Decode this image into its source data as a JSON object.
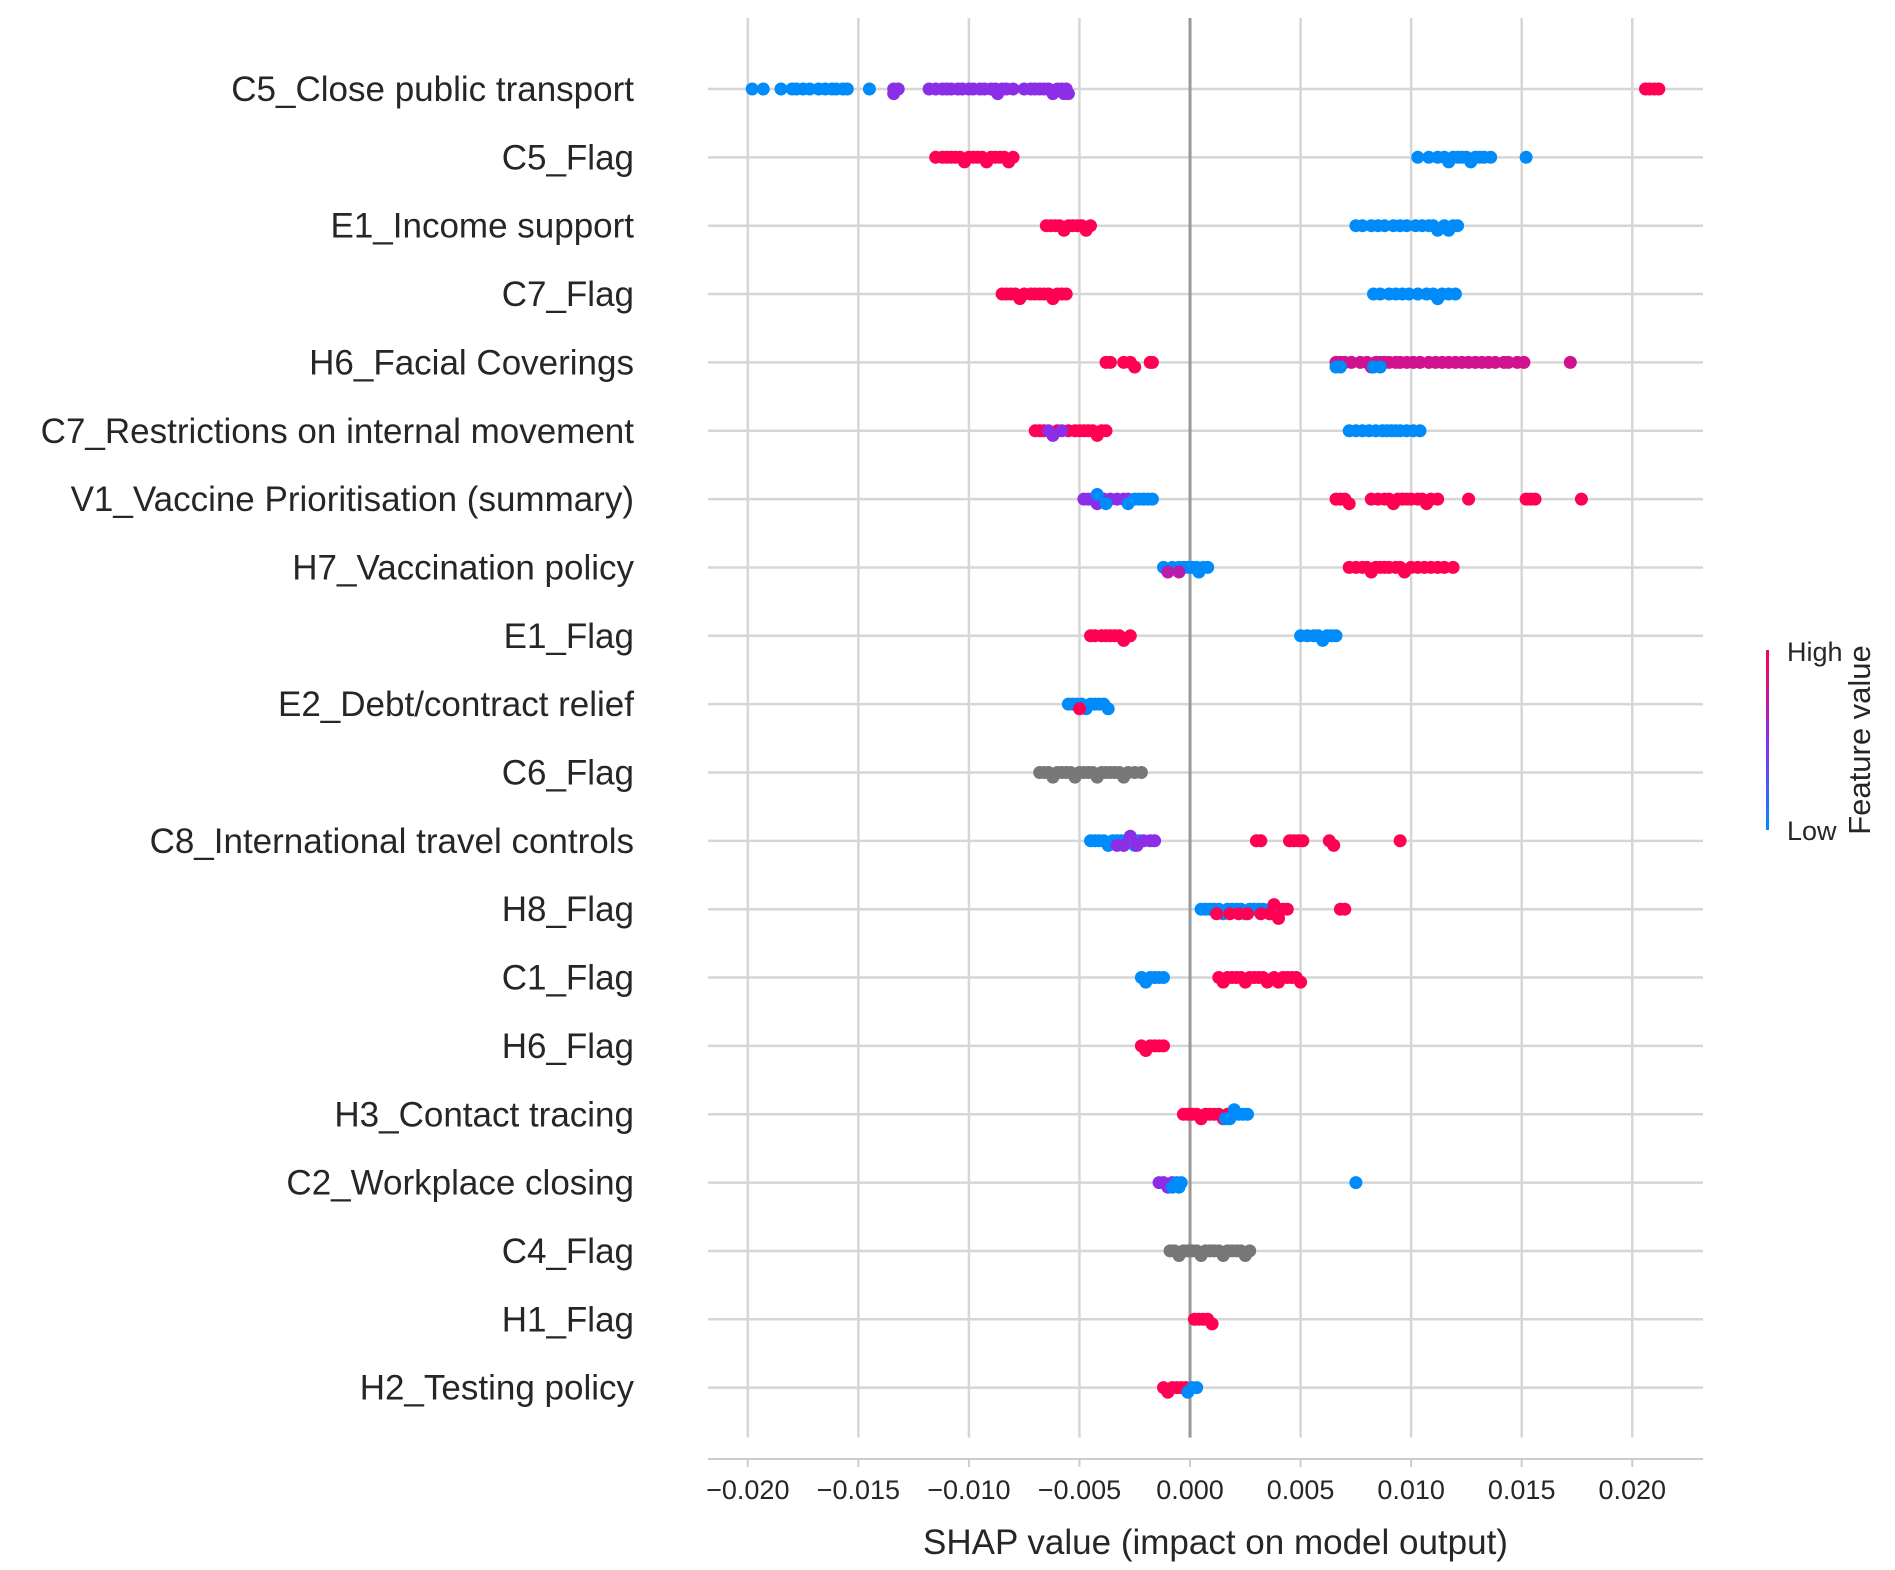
{
  "chart_data": {
    "type": "scatter",
    "subtype": "shap-beeswarm-summary",
    "title": "",
    "xlabel": "SHAP value (impact on model output)",
    "ylabel": "",
    "xlim": [
      -0.0218,
      0.0232
    ],
    "xticks": [
      -0.02,
      -0.015,
      -0.01,
      -0.005,
      0.0,
      0.005,
      0.01,
      0.015,
      0.02
    ],
    "xtick_labels": [
      "−0.020",
      "−0.015",
      "−0.010",
      "−0.005",
      "0.000",
      "0.005",
      "0.010",
      "0.015",
      "0.020"
    ],
    "grid": "vertical and horizontal",
    "colorbar": {
      "title": "Feature value",
      "high_label": "High",
      "low_label": "Low",
      "low_color": "#008bfb",
      "high_color": "#ff0052",
      "placement": "right"
    },
    "missing_color": "#777777",
    "features": [
      {
        "name": "C5_Close public transport",
        "groups": [
          {
            "c": 0.0,
            "xs": [
              -0.0198,
              -0.0193,
              -0.0185,
              -0.018,
              -0.0178,
              -0.0175,
              -0.0172,
              -0.0168,
              -0.0165,
              -0.0162,
              -0.016,
              -0.0157,
              -0.0155,
              -0.0145
            ]
          },
          {
            "c": 0.5,
            "xs": [
              -0.0134,
              -0.0134,
              -0.0132,
              -0.0118,
              -0.0115,
              -0.0112,
              -0.011,
              -0.0108,
              -0.0105,
              -0.0103,
              -0.01,
              -0.0098,
              -0.0095,
              -0.0093,
              -0.009,
              -0.0088,
              -0.0087,
              -0.0085,
              -0.0083,
              -0.008,
              -0.0075,
              -0.0072,
              -0.007,
              -0.0068,
              -0.0066,
              -0.0064,
              -0.0062,
              -0.006,
              -0.0058,
              -0.0057,
              -0.0056,
              -0.0055
            ]
          },
          {
            "c": 1.0,
            "xs": [
              0.0206,
              0.0208,
              0.021,
              0.0212
            ]
          }
        ]
      },
      {
        "name": "C5_Flag",
        "groups": [
          {
            "c": 1.0,
            "xs": [
              -0.0115,
              -0.0112,
              -0.011,
              -0.0108,
              -0.0106,
              -0.0104,
              -0.0102,
              -0.01,
              -0.0098,
              -0.0096,
              -0.0094,
              -0.0092,
              -0.009,
              -0.0088,
              -0.0086,
              -0.0084,
              -0.0082,
              -0.008
            ]
          },
          {
            "c": 0.0,
            "xs": [
              0.0103,
              0.0108,
              0.0112,
              0.0115,
              0.0117,
              0.0119,
              0.0121,
              0.0123,
              0.0125,
              0.0127,
              0.0129,
              0.0131,
              0.0133,
              0.0136,
              0.0152
            ]
          }
        ]
      },
      {
        "name": "E1_Income support",
        "groups": [
          {
            "c": 1.0,
            "xs": [
              -0.0065,
              -0.0063,
              -0.0061,
              -0.0059,
              -0.0057,
              -0.0055,
              -0.0053,
              -0.0051,
              -0.0049,
              -0.0047,
              -0.0045
            ]
          },
          {
            "c": 0.0,
            "xs": [
              0.0075,
              0.0078,
              0.0082,
              0.0085,
              0.0088,
              0.0092,
              0.0095,
              0.0098,
              0.0102,
              0.0105,
              0.0108,
              0.011,
              0.0112,
              0.0115,
              0.0117,
              0.0119,
              0.0121
            ]
          }
        ]
      },
      {
        "name": "C7_Flag",
        "groups": [
          {
            "c": 1.0,
            "xs": [
              -0.0085,
              -0.0083,
              -0.0081,
              -0.0079,
              -0.0077,
              -0.0075,
              -0.0072,
              -0.007,
              -0.0068,
              -0.0066,
              -0.0064,
              -0.0062,
              -0.006,
              -0.0058,
              -0.0056
            ]
          },
          {
            "c": 0.0,
            "xs": [
              0.0083,
              0.0086,
              0.009,
              0.0093,
              0.0096,
              0.0099,
              0.0103,
              0.0107,
              0.011,
              0.0112,
              0.0114,
              0.0117,
              0.012
            ]
          }
        ]
      },
      {
        "name": "H6_Facial Coverings",
        "groups": [
          {
            "c": 1.0,
            "xs": [
              -0.0038,
              -0.0036,
              -0.003,
              -0.0027,
              -0.0025,
              -0.0018,
              -0.0017
            ]
          },
          {
            "c": 0.8,
            "xs": [
              0.0066,
              0.0068,
              0.007,
              0.0073,
              0.0077,
              0.008,
              0.0082,
              0.0084,
              0.0086,
              0.0088,
              0.009,
              0.0093,
              0.0095,
              0.0098,
              0.0101,
              0.0104,
              0.0108,
              0.0111,
              0.0114,
              0.0117,
              0.012,
              0.0123,
              0.0126,
              0.0129,
              0.0132,
              0.0135,
              0.0138,
              0.0142,
              0.0144,
              0.0148,
              0.0151,
              0.0172
            ]
          },
          {
            "c": 0.0,
            "xs": [
              0.0066,
              0.0068,
              0.0083,
              0.0086
            ]
          }
        ]
      },
      {
        "name": "C7_Restrictions on internal movement",
        "groups": [
          {
            "c": 1.0,
            "xs": [
              -0.007,
              -0.0068,
              -0.0066,
              -0.006,
              -0.0055,
              -0.0052,
              -0.005,
              -0.0048,
              -0.0046,
              -0.0044,
              -0.0042,
              -0.004,
              -0.0038
            ]
          },
          {
            "c": 0.5,
            "xs": [
              -0.0064,
              -0.0062,
              -0.0058
            ]
          },
          {
            "c": 0.0,
            "xs": [
              0.0072,
              0.0075,
              0.0078,
              0.0081,
              0.0084,
              0.0087,
              0.0089,
              0.0091,
              0.0093,
              0.0095,
              0.0098,
              0.0101,
              0.0104
            ]
          }
        ]
      },
      {
        "name": "V1_Vaccine Prioritisation (summary)",
        "groups": [
          {
            "c": 0.5,
            "xs": [
              -0.0048,
              -0.0046,
              -0.0044,
              -0.0042,
              -0.0039,
              -0.0036,
              -0.0033,
              -0.003,
              -0.0028
            ]
          },
          {
            "c": 0.0,
            "xs": [
              -0.0042,
              -0.0038,
              -0.0028,
              -0.0025,
              -0.0023,
              -0.0021,
              -0.0019,
              -0.0017
            ]
          },
          {
            "c": 1.0,
            "xs": [
              0.0066,
              0.0068,
              0.007,
              0.0072,
              0.0082,
              0.0085,
              0.0088,
              0.009,
              0.0092,
              0.0094,
              0.0096,
              0.0098,
              0.01,
              0.0103,
              0.0105,
              0.0107,
              0.0109,
              0.0112,
              0.0126,
              0.0152,
              0.0154,
              0.0156,
              0.0177
            ]
          }
        ]
      },
      {
        "name": "H7_Vaccination policy",
        "groups": [
          {
            "c": 0.0,
            "xs": [
              -0.0012,
              -0.0008,
              -0.0005,
              -0.0003,
              -0.0001,
              0.0001,
              0.0003,
              0.0004,
              0.0006,
              0.0008
            ]
          },
          {
            "c": 0.7,
            "xs": [
              -0.001,
              -0.0005
            ]
          },
          {
            "c": 1.0,
            "xs": [
              0.0072,
              0.0075,
              0.0078,
              0.008,
              0.0082,
              0.0084,
              0.0086,
              0.0088,
              0.009,
              0.0093,
              0.0095,
              0.0097,
              0.01,
              0.0103,
              0.0106,
              0.0109,
              0.0112,
              0.0115,
              0.0119
            ]
          }
        ]
      },
      {
        "name": "E1_Flag",
        "groups": [
          {
            "c": 1.0,
            "xs": [
              -0.0045,
              -0.0043,
              -0.004,
              -0.0038,
              -0.0036,
              -0.0034,
              -0.0032,
              -0.003,
              -0.0027
            ]
          },
          {
            "c": 0.0,
            "xs": [
              0.005,
              0.0053,
              0.0056,
              0.0058,
              0.006,
              0.0062,
              0.0064,
              0.0066
            ]
          }
        ]
      },
      {
        "name": "E2_Debt/contract relief",
        "groups": [
          {
            "c": 0.0,
            "xs": [
              -0.0055,
              -0.0053,
              -0.0051,
              -0.0049,
              -0.0047,
              -0.0045,
              -0.0043,
              -0.0041,
              -0.0039,
              -0.0037
            ]
          },
          {
            "c": 1.0,
            "xs": [
              -0.005
            ]
          }
        ]
      },
      {
        "name": "C6_Flag",
        "groups": [
          {
            "c": -1,
            "xs": [
              -0.0068,
              -0.0066,
              -0.0064,
              -0.0062,
              -0.006,
              -0.0058,
              -0.0056,
              -0.0054,
              -0.0052,
              -0.005,
              -0.0048,
              -0.0046,
              -0.0044,
              -0.0042,
              -0.004,
              -0.0038,
              -0.0036,
              -0.0034,
              -0.0032,
              -0.003,
              -0.0028,
              -0.0025,
              -0.0022
            ]
          }
        ]
      },
      {
        "name": "C8_International travel controls",
        "groups": [
          {
            "c": 0.0,
            "xs": [
              -0.0045,
              -0.0043,
              -0.0041,
              -0.0039,
              -0.0037,
              -0.0035,
              -0.0033,
              -0.0031,
              -0.0029,
              -0.0027,
              -0.0025,
              -0.0023
            ]
          },
          {
            "c": 0.5,
            "xs": [
              -0.0033,
              -0.003,
              -0.0027,
              -0.0024,
              -0.0021,
              -0.0018,
              -0.0016
            ]
          },
          {
            "c": 1.0,
            "xs": [
              0.003,
              0.0032,
              0.0045,
              0.0047,
              0.0049,
              0.0051,
              0.0063,
              0.0065,
              0.0095
            ]
          }
        ]
      },
      {
        "name": "H8_Flag",
        "groups": [
          {
            "c": 0.0,
            "xs": [
              0.0005,
              0.0007,
              0.0009,
              0.0011,
              0.0013,
              0.0015,
              0.0017,
              0.0019,
              0.0021,
              0.0023,
              0.0025,
              0.0027,
              0.0029,
              0.0031,
              0.0033,
              0.0036,
              0.0038,
              0.004
            ]
          },
          {
            "c": 1.0,
            "xs": [
              0.0012,
              0.0018,
              0.0022,
              0.0026,
              0.0032,
              0.0036,
              0.0038,
              0.004,
              0.0042,
              0.0044,
              0.0068,
              0.007
            ]
          }
        ]
      },
      {
        "name": "C1_Flag",
        "groups": [
          {
            "c": 0.0,
            "xs": [
              -0.0022,
              -0.002,
              -0.0018,
              -0.0016,
              -0.0014,
              -0.0012
            ]
          },
          {
            "c": 1.0,
            "xs": [
              0.0013,
              0.0015,
              0.0017,
              0.0019,
              0.0021,
              0.0023,
              0.0025,
              0.0027,
              0.0029,
              0.0031,
              0.0033,
              0.0035,
              0.0038,
              0.004,
              0.0042,
              0.0044,
              0.0046,
              0.0048,
              0.005
            ]
          }
        ]
      },
      {
        "name": "H6_Flag",
        "groups": [
          {
            "c": 1.0,
            "xs": [
              -0.0022,
              -0.002,
              -0.0018,
              -0.0016,
              -0.0014,
              -0.0012
            ]
          }
        ]
      },
      {
        "name": "H3_Contact tracing",
        "groups": [
          {
            "c": 1.0,
            "xs": [
              -0.0003,
              -0.0001,
              0.0001,
              0.0003,
              0.0005,
              0.0007,
              0.0009,
              0.0011,
              0.0013,
              0.0015,
              0.0017,
              0.0019
            ]
          },
          {
            "c": 0.0,
            "xs": [
              0.0016,
              0.0018,
              0.002,
              0.0022,
              0.0024,
              0.0026
            ]
          }
        ]
      },
      {
        "name": "C2_Workplace closing",
        "groups": [
          {
            "c": 0.5,
            "xs": [
              -0.0014,
              -0.0012,
              -0.001,
              -0.0008
            ]
          },
          {
            "c": 0.0,
            "xs": [
              -0.0008,
              -0.0006,
              -0.0005,
              -0.0004,
              0.0075
            ]
          }
        ]
      },
      {
        "name": "C4_Flag",
        "groups": [
          {
            "c": -1,
            "xs": [
              -0.0009,
              -0.0007,
              -0.0005,
              -0.0003,
              -0.0001,
              0.0001,
              0.0003,
              0.0005,
              0.0007,
              0.0009,
              0.0011,
              0.0013,
              0.0015,
              0.0017,
              0.0019,
              0.0021,
              0.0023,
              0.0025,
              0.0027
            ]
          }
        ]
      },
      {
        "name": "H1_Flag",
        "groups": [
          {
            "c": 1.0,
            "xs": [
              0.0002,
              0.0004,
              0.0006,
              0.0008,
              0.001
            ]
          }
        ]
      },
      {
        "name": "H2_Testing policy",
        "groups": [
          {
            "c": 1.0,
            "xs": [
              -0.0012,
              -0.001,
              -0.0008,
              -0.0006,
              -0.0004,
              -0.0002
            ]
          },
          {
            "c": 0.0,
            "xs": [
              -0.0001,
              0.0001,
              0.0003
            ]
          }
        ]
      }
    ]
  }
}
